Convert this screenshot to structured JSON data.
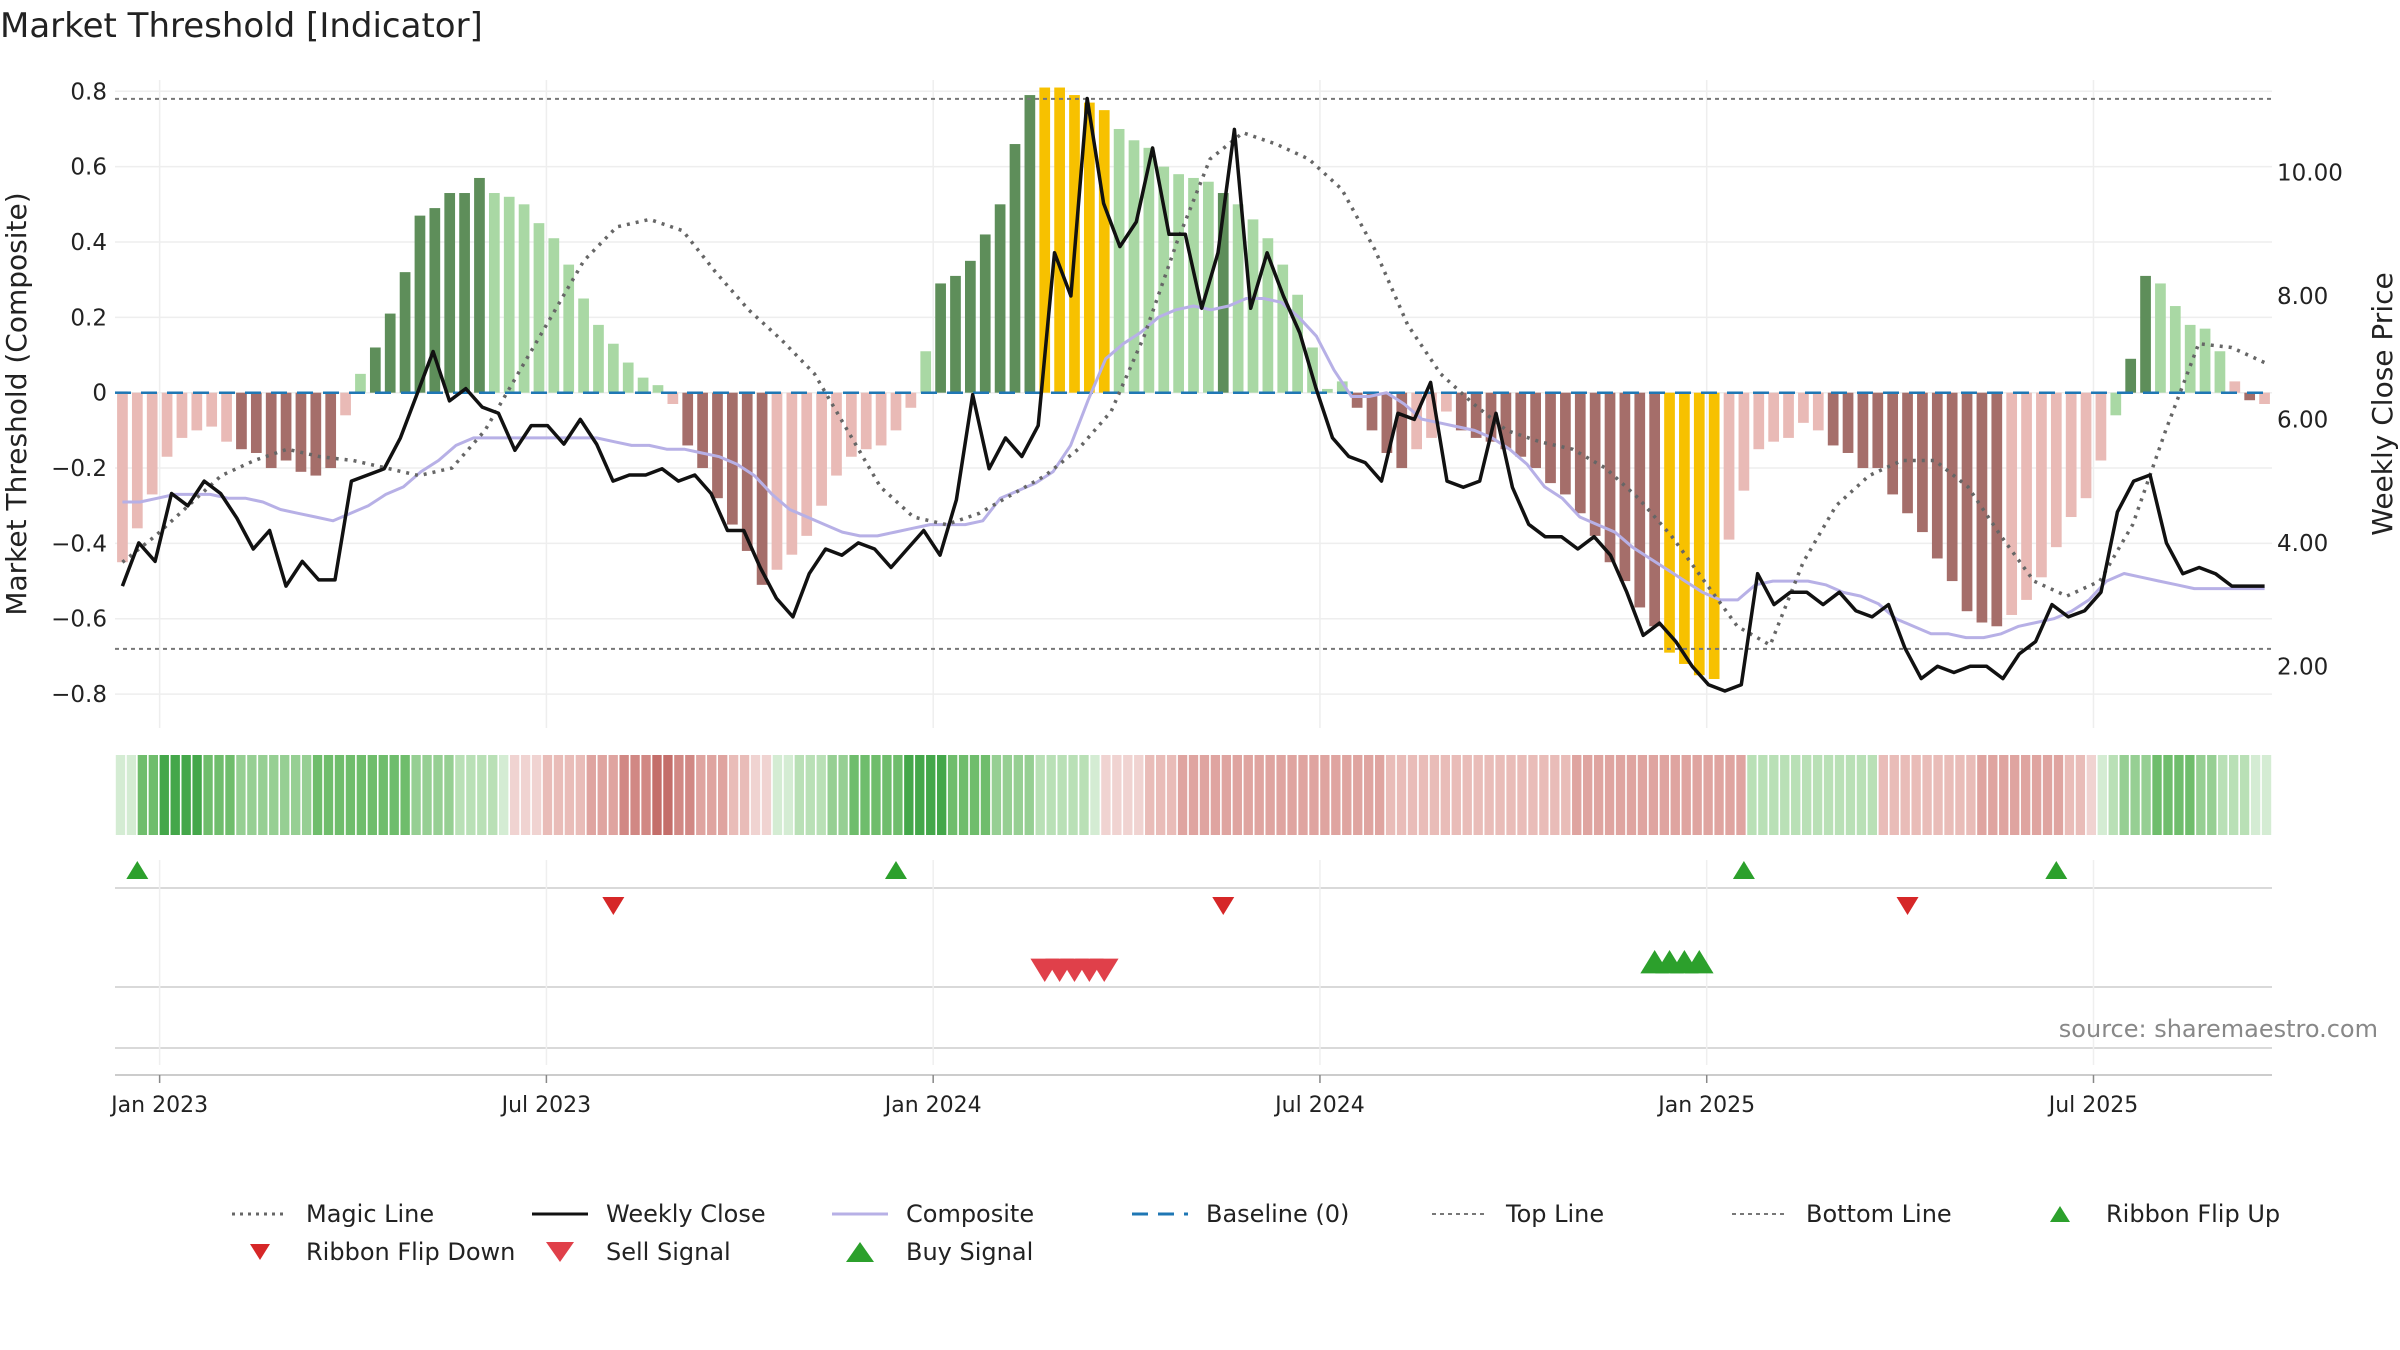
{
  "title": "Market Threshold [Indicator]",
  "source": "source: sharemaestro.com",
  "colors": {
    "dark_green": "#5e8e5a",
    "light_green": "#a9d8a4",
    "dark_red": "#a56e6a",
    "light_red": "#e9bab6",
    "gold": "#f7c100",
    "weekly_close": "#111111",
    "composite": "#b7b0e6",
    "magic_line": "#666666",
    "baseline": "#1f77b4",
    "threshold": "#777777",
    "buy": "#2ca02c",
    "sell": "#d62728"
  },
  "chart_data": {
    "type": "bar",
    "title": "Market Threshold [Indicator]",
    "ylabel": "Market Threshold (Composite)",
    "y2label": "Weekly Close Price",
    "ylim": [
      -0.89,
      0.83
    ],
    "y2lim": [
      1.0,
      11.5
    ],
    "yticks": [
      0.8,
      0.6,
      0.4,
      0.2,
      0,
      -0.2,
      -0.4,
      -0.6,
      -0.8
    ],
    "ytick_labels": [
      "0.8",
      "0.6",
      "0.4",
      "0.2",
      "0",
      "−0.2",
      "−0.4",
      "−0.6",
      "−0.8"
    ],
    "y2ticks": [
      10,
      8,
      6,
      4,
      2
    ],
    "y2tick_labels": [
      "10.00",
      "8.00",
      "6.00",
      "4.00",
      "2.00"
    ],
    "xtick_labels": [
      "Jan 2023",
      "Jul 2023",
      "Jan 2024",
      "Jul 2024",
      "Jan 2025",
      "Jul 2025"
    ],
    "xtick_weeks": [
      2.5,
      28.5,
      54.5,
      80.5,
      106.5,
      132.5
    ],
    "top_line": 0.78,
    "bottom_line": -0.68,
    "baseline": 0,
    "composite_bars": [
      -0.45,
      -0.36,
      -0.27,
      -0.17,
      -0.12,
      -0.1,
      -0.09,
      -0.13,
      -0.15,
      -0.16,
      -0.2,
      -0.18,
      -0.21,
      -0.22,
      -0.2,
      -0.06,
      0.05,
      0.12,
      0.21,
      0.32,
      0.47,
      0.49,
      0.53,
      0.53,
      0.57,
      0.53,
      0.52,
      0.5,
      0.45,
      0.41,
      0.34,
      0.25,
      0.18,
      0.13,
      0.08,
      0.04,
      0.02,
      -0.03,
      -0.14,
      -0.2,
      -0.28,
      -0.35,
      -0.42,
      -0.51,
      -0.47,
      -0.43,
      -0.38,
      -0.3,
      -0.22,
      -0.17,
      -0.15,
      -0.14,
      -0.1,
      -0.04,
      0.11,
      0.29,
      0.31,
      0.35,
      0.42,
      0.5,
      0.66,
      0.79,
      0.81,
      0.81,
      0.79,
      0.77,
      0.75,
      0.7,
      0.67,
      0.65,
      0.6,
      0.58,
      0.57,
      0.56,
      0.53,
      0.5,
      0.46,
      0.41,
      0.34,
      0.26,
      0.12,
      0.01,
      0.03,
      -0.04,
      -0.1,
      -0.16,
      -0.2,
      -0.15,
      -0.12,
      -0.05,
      -0.1,
      -0.12,
      -0.13,
      -0.15,
      -0.17,
      -0.2,
      -0.24,
      -0.27,
      -0.32,
      -0.38,
      -0.45,
      -0.5,
      -0.57,
      -0.62,
      -0.69,
      -0.72,
      -0.75,
      -0.76,
      -0.39,
      -0.26,
      -0.15,
      -0.13,
      -0.12,
      -0.08,
      -0.1,
      -0.14,
      -0.16,
      -0.2,
      -0.2,
      -0.27,
      -0.32,
      -0.37,
      -0.44,
      -0.5,
      -0.58,
      -0.61,
      -0.62,
      -0.59,
      -0.55,
      -0.49,
      -0.41,
      -0.33,
      -0.28,
      -0.18,
      -0.06,
      0.09,
      0.31,
      0.29,
      0.23,
      0.18,
      0.17,
      0.11,
      0.03,
      -0.02,
      -0.03
    ],
    "composite_bar_colors": [
      "LR",
      "LR",
      "LR",
      "LR",
      "LR",
      "LR",
      "LR",
      "LR",
      "DR",
      "DR",
      "DR",
      "DR",
      "DR",
      "DR",
      "DR",
      "LR",
      "LG",
      "DG",
      "DG",
      "DG",
      "DG",
      "DG",
      "DG",
      "DG",
      "DG",
      "LG",
      "LG",
      "LG",
      "LG",
      "LG",
      "LG",
      "LG",
      "LG",
      "LG",
      "LG",
      "LG",
      "LG",
      "LR",
      "DR",
      "DR",
      "DR",
      "DR",
      "DR",
      "DR",
      "LR",
      "LR",
      "LR",
      "LR",
      "LR",
      "LR",
      "LR",
      "LR",
      "LR",
      "LR",
      "LG",
      "DG",
      "DG",
      "DG",
      "DG",
      "DG",
      "DG",
      "DG",
      "GD",
      "GD",
      "GD",
      "GD",
      "GD",
      "LG",
      "LG",
      "LG",
      "LG",
      "LG",
      "LG",
      "LG",
      "DG",
      "LG",
      "LG",
      "LG",
      "LG",
      "LG",
      "LG",
      "LG",
      "LG",
      "DR",
      "DR",
      "DR",
      "DR",
      "LR",
      "LR",
      "LR",
      "DR",
      "DR",
      "DR",
      "DR",
      "DR",
      "DR",
      "DR",
      "DR",
      "DR",
      "DR",
      "DR",
      "DR",
      "DR",
      "DR",
      "GD",
      "GD",
      "GD",
      "GD",
      "LR",
      "LR",
      "LR",
      "LR",
      "LR",
      "LR",
      "LR",
      "DR",
      "DR",
      "DR",
      "DR",
      "DR",
      "DR",
      "DR",
      "DR",
      "DR",
      "DR",
      "DR",
      "DR",
      "LR",
      "LR",
      "LR",
      "LR",
      "LR",
      "LR",
      "LR",
      "LG",
      "DG",
      "DG",
      "LG",
      "LG",
      "LG",
      "LG",
      "LG",
      "LR",
      "DR"
    ],
    "weekly_close": [
      3.3,
      4.0,
      3.7,
      4.8,
      4.6,
      5.0,
      4.8,
      4.4,
      3.9,
      4.2,
      3.3,
      3.7,
      3.4,
      3.4,
      5.0,
      5.1,
      5.2,
      5.7,
      6.4,
      7.1,
      6.3,
      6.5,
      6.2,
      6.1,
      5.5,
      5.9,
      5.9,
      5.6,
      6.0,
      5.6,
      5.0,
      5.1,
      5.1,
      5.2,
      5.0,
      5.1,
      4.8,
      4.2,
      4.2,
      3.6,
      3.1,
      2.8,
      3.5,
      3.9,
      3.8,
      4.0,
      3.9,
      3.6,
      3.9,
      4.2,
      3.8,
      4.7,
      6.4,
      5.2,
      5.7,
      5.4,
      5.9,
      8.7,
      8.0,
      11.2,
      9.5,
      8.8,
      9.2,
      10.4,
      9.0,
      9.0,
      7.8,
      8.7,
      10.7,
      7.8,
      8.7,
      8.0,
      7.4,
      6.5,
      5.7,
      5.4,
      5.3,
      5.0,
      6.1,
      6.0,
      6.6,
      5.0,
      4.9,
      5.0,
      6.1,
      4.9,
      4.3,
      4.1,
      4.1,
      3.9,
      4.1,
      3.8,
      3.2,
      2.5,
      2.7,
      2.4,
      2.0,
      1.7,
      1.6,
      1.7,
      3.5,
      3.0,
      3.2,
      3.2,
      3.0,
      3.2,
      2.9,
      2.8,
      3.0,
      2.3,
      1.8,
      2.0,
      1.9,
      2.0,
      2.0,
      1.8,
      2.2,
      2.4,
      3.0,
      2.8,
      2.9,
      3.2,
      4.5,
      5.0,
      5.1,
      4.0,
      3.5,
      3.6,
      3.5,
      3.3,
      3.3,
      3.3
    ],
    "composite_line": [
      -0.29,
      -0.29,
      -0.28,
      -0.27,
      -0.27,
      -0.27,
      -0.28,
      -0.28,
      -0.29,
      -0.31,
      -0.32,
      -0.33,
      -0.34,
      -0.32,
      -0.3,
      -0.27,
      -0.25,
      -0.21,
      -0.18,
      -0.14,
      -0.12,
      -0.12,
      -0.12,
      -0.12,
      -0.12,
      -0.12,
      -0.12,
      -0.12,
      -0.13,
      -0.14,
      -0.14,
      -0.15,
      -0.15,
      -0.16,
      -0.17,
      -0.19,
      -0.22,
      -0.27,
      -0.31,
      -0.33,
      -0.35,
      -0.37,
      -0.38,
      -0.38,
      -0.37,
      -0.36,
      -0.35,
      -0.35,
      -0.35,
      -0.34,
      -0.28,
      -0.26,
      -0.24,
      -0.21,
      -0.14,
      -0.02,
      0.09,
      0.13,
      0.16,
      0.2,
      0.22,
      0.23,
      0.22,
      0.23,
      0.25,
      0.25,
      0.24,
      0.2,
      0.15,
      0.06,
      -0.01,
      -0.01,
      0.0,
      -0.03,
      -0.07,
      -0.08,
      -0.09,
      -0.1,
      -0.12,
      -0.15,
      -0.19,
      -0.25,
      -0.28,
      -0.33,
      -0.35,
      -0.37,
      -0.41,
      -0.44,
      -0.47,
      -0.5,
      -0.53,
      -0.55,
      -0.55,
      -0.51,
      -0.5,
      -0.5,
      -0.5,
      -0.51,
      -0.53,
      -0.54,
      -0.56,
      -0.6,
      -0.62,
      -0.64,
      -0.64,
      -0.65,
      -0.65,
      -0.64,
      -0.62,
      -0.61,
      -0.6,
      -0.58,
      -0.55,
      -0.5,
      -0.48,
      -0.49,
      -0.5,
      -0.51,
      -0.52,
      -0.52,
      -0.52,
      -0.52,
      -0.52
    ],
    "magic_line": [
      -0.45,
      -0.38,
      -0.3,
      -0.22,
      -0.18,
      -0.15,
      -0.17,
      -0.18,
      -0.2,
      -0.22,
      -0.2,
      -0.1,
      0.05,
      0.2,
      0.35,
      0.44,
      0.46,
      0.43,
      0.32,
      0.22,
      0.14,
      0.05,
      -0.1,
      -0.25,
      -0.33,
      -0.35,
      -0.32,
      -0.27,
      -0.22,
      -0.15,
      -0.05,
      0.15,
      0.4,
      0.62,
      0.69,
      0.66,
      0.62,
      0.54,
      0.38,
      0.18,
      0.05,
      -0.03,
      -0.1,
      -0.13,
      -0.15,
      -0.2,
      -0.28,
      -0.38,
      -0.5,
      -0.62,
      -0.67,
      -0.45,
      -0.3,
      -0.22,
      -0.18,
      -0.18,
      -0.25,
      -0.38,
      -0.5,
      -0.54,
      -0.5,
      -0.35,
      -0.1,
      0.13,
      0.12,
      0.08
    ],
    "ribbon": [
      1,
      1,
      4,
      4,
      5,
      5,
      5,
      5,
      4,
      4,
      4,
      3,
      3,
      3,
      3,
      3,
      3,
      3,
      4,
      4,
      4,
      4,
      4,
      4,
      4,
      4,
      4,
      3,
      3,
      3,
      3,
      2,
      2,
      2,
      2,
      1,
      -1,
      -1,
      -1,
      -2,
      -2,
      -2,
      -2,
      -3,
      -3,
      -3,
      -4,
      -4,
      -4,
      -5,
      -5,
      -4,
      -4,
      -3,
      -3,
      -3,
      -2,
      -2,
      -1,
      -1,
      1,
      1,
      2,
      2,
      2,
      3,
      3,
      4,
      4,
      4,
      4,
      4,
      5,
      5,
      5,
      5,
      4,
      4,
      4,
      4,
      3,
      3,
      3,
      3,
      2,
      2,
      2,
      2,
      2,
      1,
      -1,
      -1,
      -1,
      -1,
      -2,
      -2,
      -2,
      -3,
      -3,
      -3,
      -3,
      -3,
      -3,
      -3,
      -3,
      -3,
      -3,
      -3,
      -3,
      -3,
      -3,
      -3,
      -3,
      -3,
      -3,
      -3,
      -2,
      -2,
      -2,
      -2,
      -2,
      -2,
      -2,
      -2,
      -2,
      -2,
      -2,
      -2,
      -2,
      -2,
      -2,
      -2,
      -2,
      -3,
      -3,
      -3,
      -3,
      -3,
      -3,
      -3,
      -3,
      -3,
      -3,
      -3,
      -3,
      -3,
      -3,
      -3,
      -3,
      2,
      2,
      2,
      2,
      2,
      2,
      2,
      2,
      2,
      2,
      2,
      2,
      -2,
      -2,
      -2,
      -2,
      -2,
      -2,
      -2,
      -2,
      -2,
      -3,
      -3,
      -3,
      -3,
      -3,
      -3,
      -3,
      -3,
      -2,
      -2,
      -1,
      1,
      2,
      3,
      3,
      3,
      4,
      4,
      4,
      4,
      3,
      3,
      2,
      2,
      2,
      1,
      1
    ],
    "ribbon_flip_up_weeks": [
      1,
      52,
      109,
      130
    ],
    "ribbon_flip_down_weeks": [
      33,
      74,
      120
    ],
    "sell_signal_weeks": [
      62,
      63,
      64,
      65,
      66
    ],
    "buy_signal_weeks": [
      103,
      104,
      105,
      106
    ]
  },
  "legend": [
    {
      "label": "Magic Line",
      "style": "dotted",
      "color": "#666666"
    },
    {
      "label": "Weekly Close",
      "style": "solid",
      "color": "#111111"
    },
    {
      "label": "Composite",
      "style": "solid",
      "color": "#b7b0e6"
    },
    {
      "label": "Baseline (0)",
      "style": "dashed",
      "color": "#1f77b4"
    },
    {
      "label": "Top Line",
      "style": "dotted",
      "color": "#777777"
    },
    {
      "label": "Bottom Line",
      "style": "dotted",
      "color": "#777777"
    },
    {
      "label": "Ribbon Flip Up",
      "style": "tri-up",
      "color": "#2ca02c"
    },
    {
      "label": "Ribbon Flip Down",
      "style": "tri-down",
      "color": "#d62728"
    },
    {
      "label": "Sell Signal",
      "style": "tri-down-big",
      "color": "#e0404a"
    },
    {
      "label": "Buy Signal",
      "style": "tri-up-big",
      "color": "#2ca02c"
    }
  ]
}
